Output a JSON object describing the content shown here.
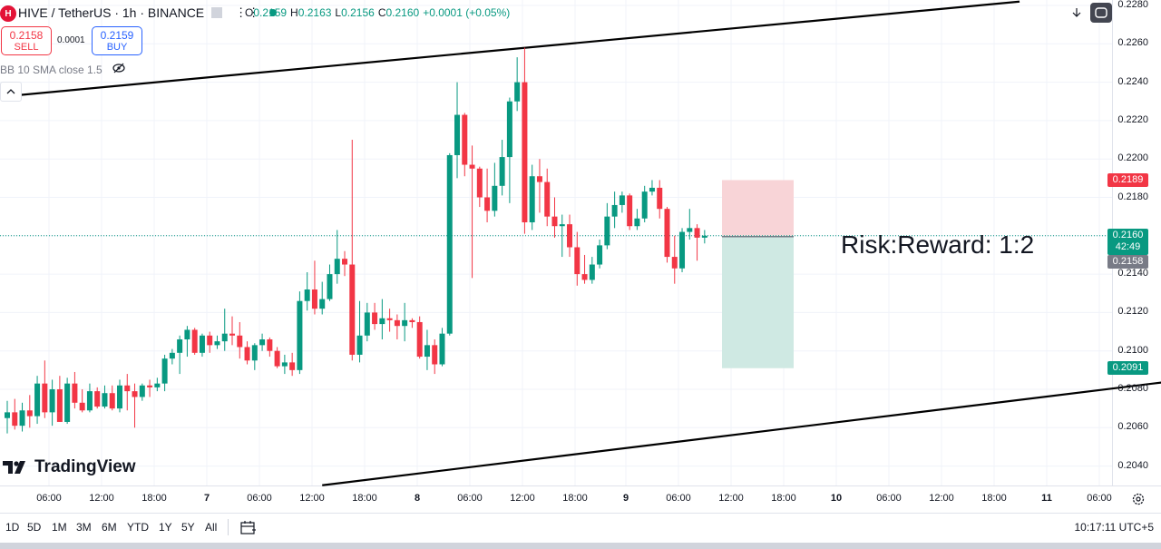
{
  "symbol": {
    "title": "HIVE / TetherUS · 1h · BINANCE",
    "logo_letter": "H"
  },
  "ohlc": {
    "open_label": "O",
    "open": "0.2159",
    "high_label": "H",
    "high": "0.2163",
    "low_label": "L",
    "low": "0.2156",
    "close_label": "C",
    "close": "0.2160",
    "change": "+0.0001 (+0.05%)"
  },
  "trading": {
    "sell_price": "0.2158",
    "sell_label": "SELL",
    "spread": "0.0001",
    "buy_price": "0.2159",
    "buy_label": "BUY"
  },
  "indicator": {
    "label": "BB 10 SMA close 1.5"
  },
  "annotation": {
    "text": "Risk:Reward: 1:2"
  },
  "price_axis": {
    "ticks": [
      "0.2280",
      "0.2260",
      "0.2240",
      "0.2220",
      "0.2200",
      "0.2180",
      "0.2140",
      "0.2120",
      "0.2100",
      "0.2080",
      "0.2060",
      "0.2040"
    ],
    "stop_tag": "0.2189",
    "current_tag": "0.2160",
    "countdown": "42:49",
    "bid_tag": "0.2158",
    "target_tag": "0.2091"
  },
  "time_axis": {
    "ticks": [
      {
        "label": "06:00",
        "bold": false
      },
      {
        "label": "12:00",
        "bold": false
      },
      {
        "label": "18:00",
        "bold": false
      },
      {
        "label": "7",
        "bold": true
      },
      {
        "label": "06:00",
        "bold": false
      },
      {
        "label": "12:00",
        "bold": false
      },
      {
        "label": "18:00",
        "bold": false
      },
      {
        "label": "8",
        "bold": true
      },
      {
        "label": "06:00",
        "bold": false
      },
      {
        "label": "12:00",
        "bold": false
      },
      {
        "label": "18:00",
        "bold": false
      },
      {
        "label": "9",
        "bold": true
      },
      {
        "label": "06:00",
        "bold": false
      },
      {
        "label": "12:00",
        "bold": false
      },
      {
        "label": "18:00",
        "bold": false
      },
      {
        "label": "10",
        "bold": true
      },
      {
        "label": "06:00",
        "bold": false
      },
      {
        "label": "12:00",
        "bold": false
      },
      {
        "label": "18:00",
        "bold": false
      },
      {
        "label": "11",
        "bold": true
      },
      {
        "label": "06:00",
        "bold": false
      }
    ]
  },
  "bottom_bar": {
    "ranges": [
      "1D",
      "5D",
      "1M",
      "3M",
      "6M",
      "YTD",
      "1Y",
      "5Y",
      "All"
    ],
    "clock": "10:17:11 UTC+5"
  },
  "branding": {
    "logo_text": "TradingView"
  },
  "colors": {
    "up": "#089981",
    "down": "#f23645",
    "stop_fill": "#f8d4d7",
    "target_fill": "#cfe9e3"
  },
  "chart_data": {
    "type": "candlestick",
    "ylim": [
      0.203,
      0.2285
    ],
    "series": [
      {
        "o": 0.2065,
        "h": 0.2074,
        "l": 0.2057,
        "c": 0.2068
      },
      {
        "o": 0.2068,
        "h": 0.2075,
        "l": 0.2059,
        "c": 0.2061
      },
      {
        "o": 0.2061,
        "h": 0.2073,
        "l": 0.2058,
        "c": 0.2069
      },
      {
        "o": 0.2069,
        "h": 0.2077,
        "l": 0.206,
        "c": 0.2066
      },
      {
        "o": 0.2066,
        "h": 0.2087,
        "l": 0.2062,
        "c": 0.2083
      },
      {
        "o": 0.2083,
        "h": 0.2095,
        "l": 0.2065,
        "c": 0.2068
      },
      {
        "o": 0.2068,
        "h": 0.2085,
        "l": 0.2061,
        "c": 0.208
      },
      {
        "o": 0.208,
        "h": 0.2087,
        "l": 0.2063,
        "c": 0.2063
      },
      {
        "o": 0.2063,
        "h": 0.2086,
        "l": 0.2062,
        "c": 0.2083
      },
      {
        "o": 0.2083,
        "h": 0.2089,
        "l": 0.207,
        "c": 0.2073
      },
      {
        "o": 0.2073,
        "h": 0.208,
        "l": 0.2068,
        "c": 0.2069
      },
      {
        "o": 0.2069,
        "h": 0.2083,
        "l": 0.2068,
        "c": 0.2079
      },
      {
        "o": 0.2079,
        "h": 0.2081,
        "l": 0.207,
        "c": 0.2071
      },
      {
        "o": 0.2071,
        "h": 0.2082,
        "l": 0.207,
        "c": 0.2078
      },
      {
        "o": 0.2078,
        "h": 0.2082,
        "l": 0.2069,
        "c": 0.207
      },
      {
        "o": 0.207,
        "h": 0.2085,
        "l": 0.2068,
        "c": 0.2082
      },
      {
        "o": 0.2082,
        "h": 0.2088,
        "l": 0.2069,
        "c": 0.2079
      },
      {
        "o": 0.2079,
        "h": 0.2083,
        "l": 0.206,
        "c": 0.2076
      },
      {
        "o": 0.2076,
        "h": 0.2083,
        "l": 0.2074,
        "c": 0.2082
      },
      {
        "o": 0.2082,
        "h": 0.2085,
        "l": 0.2076,
        "c": 0.2081
      },
      {
        "o": 0.2081,
        "h": 0.2086,
        "l": 0.2079,
        "c": 0.2083
      },
      {
        "o": 0.2083,
        "h": 0.2098,
        "l": 0.2079,
        "c": 0.2096
      },
      {
        "o": 0.2096,
        "h": 0.2101,
        "l": 0.2093,
        "c": 0.2099
      },
      {
        "o": 0.2099,
        "h": 0.2108,
        "l": 0.2088,
        "c": 0.2106
      },
      {
        "o": 0.2106,
        "h": 0.2113,
        "l": 0.2097,
        "c": 0.2111
      },
      {
        "o": 0.2111,
        "h": 0.2112,
        "l": 0.2098,
        "c": 0.2099
      },
      {
        "o": 0.2099,
        "h": 0.2109,
        "l": 0.2097,
        "c": 0.2108
      },
      {
        "o": 0.2108,
        "h": 0.211,
        "l": 0.2099,
        "c": 0.2103
      },
      {
        "o": 0.2103,
        "h": 0.2108,
        "l": 0.2101,
        "c": 0.2105
      },
      {
        "o": 0.2105,
        "h": 0.2122,
        "l": 0.21,
        "c": 0.2109
      },
      {
        "o": 0.2109,
        "h": 0.2118,
        "l": 0.2103,
        "c": 0.2108
      },
      {
        "o": 0.2108,
        "h": 0.2115,
        "l": 0.2096,
        "c": 0.2102
      },
      {
        "o": 0.2102,
        "h": 0.2105,
        "l": 0.2093,
        "c": 0.2095
      },
      {
        "o": 0.2095,
        "h": 0.2104,
        "l": 0.209,
        "c": 0.2103
      },
      {
        "o": 0.2103,
        "h": 0.2109,
        "l": 0.21,
        "c": 0.2106
      },
      {
        "o": 0.2106,
        "h": 0.2107,
        "l": 0.2097,
        "c": 0.21
      },
      {
        "o": 0.21,
        "h": 0.2102,
        "l": 0.2091,
        "c": 0.2092
      },
      {
        "o": 0.2092,
        "h": 0.2098,
        "l": 0.2088,
        "c": 0.2094
      },
      {
        "o": 0.2094,
        "h": 0.2099,
        "l": 0.2087,
        "c": 0.209
      },
      {
        "o": 0.209,
        "h": 0.2131,
        "l": 0.2088,
        "c": 0.2126
      },
      {
        "o": 0.2126,
        "h": 0.2141,
        "l": 0.2121,
        "c": 0.2132
      },
      {
        "o": 0.2132,
        "h": 0.2147,
        "l": 0.2119,
        "c": 0.2122
      },
      {
        "o": 0.2122,
        "h": 0.2136,
        "l": 0.2119,
        "c": 0.2127
      },
      {
        "o": 0.2127,
        "h": 0.2145,
        "l": 0.2126,
        "c": 0.214
      },
      {
        "o": 0.214,
        "h": 0.2163,
        "l": 0.2135,
        "c": 0.2148
      },
      {
        "o": 0.2148,
        "h": 0.2152,
        "l": 0.2139,
        "c": 0.2145
      },
      {
        "o": 0.2145,
        "h": 0.221,
        "l": 0.2095,
        "c": 0.2098
      },
      {
        "o": 0.2098,
        "h": 0.2126,
        "l": 0.2094,
        "c": 0.2108
      },
      {
        "o": 0.2108,
        "h": 0.2125,
        "l": 0.2105,
        "c": 0.212
      },
      {
        "o": 0.212,
        "h": 0.2125,
        "l": 0.2111,
        "c": 0.2114
      },
      {
        "o": 0.2114,
        "h": 0.2127,
        "l": 0.2106,
        "c": 0.2117
      },
      {
        "o": 0.2117,
        "h": 0.2122,
        "l": 0.211,
        "c": 0.2116
      },
      {
        "o": 0.2116,
        "h": 0.2119,
        "l": 0.2106,
        "c": 0.2113
      },
      {
        "o": 0.2113,
        "h": 0.2125,
        "l": 0.2105,
        "c": 0.2116
      },
      {
        "o": 0.2116,
        "h": 0.2117,
        "l": 0.2112,
        "c": 0.2115
      },
      {
        "o": 0.2115,
        "h": 0.2118,
        "l": 0.2096,
        "c": 0.2097
      },
      {
        "o": 0.2097,
        "h": 0.2111,
        "l": 0.209,
        "c": 0.2103
      },
      {
        "o": 0.2103,
        "h": 0.2106,
        "l": 0.2088,
        "c": 0.2093
      },
      {
        "o": 0.2093,
        "h": 0.2112,
        "l": 0.2092,
        "c": 0.2109
      },
      {
        "o": 0.2109,
        "h": 0.2203,
        "l": 0.2108,
        "c": 0.2202
      },
      {
        "o": 0.2202,
        "h": 0.224,
        "l": 0.219,
        "c": 0.2223
      },
      {
        "o": 0.2223,
        "h": 0.2224,
        "l": 0.2191,
        "c": 0.2197
      },
      {
        "o": 0.2197,
        "h": 0.2207,
        "l": 0.2138,
        "c": 0.2195
      },
      {
        "o": 0.2195,
        "h": 0.2196,
        "l": 0.2175,
        "c": 0.218
      },
      {
        "o": 0.218,
        "h": 0.2195,
        "l": 0.2167,
        "c": 0.2173
      },
      {
        "o": 0.2173,
        "h": 0.2198,
        "l": 0.217,
        "c": 0.2186
      },
      {
        "o": 0.2186,
        "h": 0.221,
        "l": 0.2181,
        "c": 0.2201
      },
      {
        "o": 0.2201,
        "h": 0.2232,
        "l": 0.2177,
        "c": 0.223
      },
      {
        "o": 0.223,
        "h": 0.2253,
        "l": 0.2225,
        "c": 0.224
      },
      {
        "o": 0.224,
        "h": 0.2258,
        "l": 0.2161,
        "c": 0.2167
      },
      {
        "o": 0.2167,
        "h": 0.2197,
        "l": 0.2163,
        "c": 0.2191
      },
      {
        "o": 0.2191,
        "h": 0.22,
        "l": 0.2172,
        "c": 0.2188
      },
      {
        "o": 0.2188,
        "h": 0.2195,
        "l": 0.2165,
        "c": 0.217
      },
      {
        "o": 0.217,
        "h": 0.218,
        "l": 0.2159,
        "c": 0.2165
      },
      {
        "o": 0.2165,
        "h": 0.2171,
        "l": 0.2149,
        "c": 0.2166
      },
      {
        "o": 0.2166,
        "h": 0.2171,
        "l": 0.2149,
        "c": 0.2154
      },
      {
        "o": 0.2154,
        "h": 0.2162,
        "l": 0.2134,
        "c": 0.214
      },
      {
        "o": 0.214,
        "h": 0.215,
        "l": 0.2135,
        "c": 0.2137
      },
      {
        "o": 0.2137,
        "h": 0.2149,
        "l": 0.2135,
        "c": 0.2145
      },
      {
        "o": 0.2145,
        "h": 0.2158,
        "l": 0.2143,
        "c": 0.2155
      },
      {
        "o": 0.2155,
        "h": 0.2177,
        "l": 0.2153,
        "c": 0.217
      },
      {
        "o": 0.217,
        "h": 0.2183,
        "l": 0.2164,
        "c": 0.2176
      },
      {
        "o": 0.2176,
        "h": 0.2183,
        "l": 0.2172,
        "c": 0.2181
      },
      {
        "o": 0.2181,
        "h": 0.2182,
        "l": 0.2163,
        "c": 0.2165
      },
      {
        "o": 0.2165,
        "h": 0.2174,
        "l": 0.2163,
        "c": 0.2169
      },
      {
        "o": 0.2169,
        "h": 0.2186,
        "l": 0.2167,
        "c": 0.2183
      },
      {
        "o": 0.2183,
        "h": 0.2189,
        "l": 0.2181,
        "c": 0.2185
      },
      {
        "o": 0.2185,
        "h": 0.2189,
        "l": 0.2169,
        "c": 0.2174
      },
      {
        "o": 0.2174,
        "h": 0.2175,
        "l": 0.2146,
        "c": 0.2149
      },
      {
        "o": 0.2149,
        "h": 0.216,
        "l": 0.2135,
        "c": 0.2143
      },
      {
        "o": 0.2143,
        "h": 0.2164,
        "l": 0.2141,
        "c": 0.2162
      },
      {
        "o": 0.2162,
        "h": 0.2174,
        "l": 0.2158,
        "c": 0.2164
      },
      {
        "o": 0.2164,
        "h": 0.2166,
        "l": 0.2147,
        "c": 0.2159
      },
      {
        "o": 0.2159,
        "h": 0.2163,
        "l": 0.2156,
        "c": 0.216
      }
    ],
    "position": {
      "type": "short",
      "entry": 0.216,
      "stop": 0.2189,
      "target": 0.2091,
      "label": "Risk:Reward: 1:2"
    },
    "trendlines": [
      {
        "from": {
          "bar": -2,
          "price": 0.2232
        },
        "to": {
          "bar": 135,
          "price": 0.2282
        }
      },
      {
        "from": {
          "bar": 42,
          "price": 0.203
        },
        "to": {
          "bar": 180,
          "price": 0.2096
        }
      }
    ],
    "current_price": 0.216
  }
}
